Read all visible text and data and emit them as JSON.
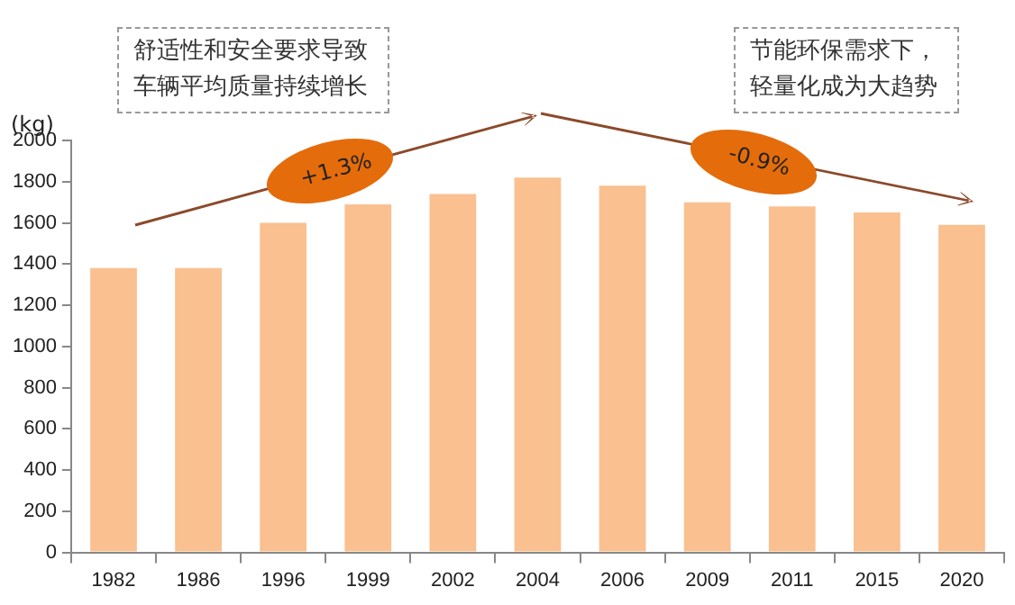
{
  "chart_data": {
    "type": "bar",
    "ylabel": "(kg)",
    "categories": [
      "1982",
      "1986",
      "1996",
      "1999",
      "2002",
      "2004",
      "2006",
      "2009",
      "2011",
      "2015",
      "2020"
    ],
    "values": [
      1380,
      1380,
      1600,
      1690,
      1740,
      1820,
      1780,
      1700,
      1680,
      1650,
      1590
    ],
    "color": "#fac090",
    "ylim": [
      0,
      2000
    ],
    "yticks": [
      0,
      200,
      400,
      600,
      800,
      1000,
      1200,
      1400,
      1600,
      1800,
      2000
    ],
    "grid": false,
    "legend": false,
    "annotations": [
      "舒适性和安全要求导致车辆平均质量持续增长",
      "节能环保需求下，轻量化成为大趋势",
      "+1.3%",
      "-0.9%"
    ]
  }
}
